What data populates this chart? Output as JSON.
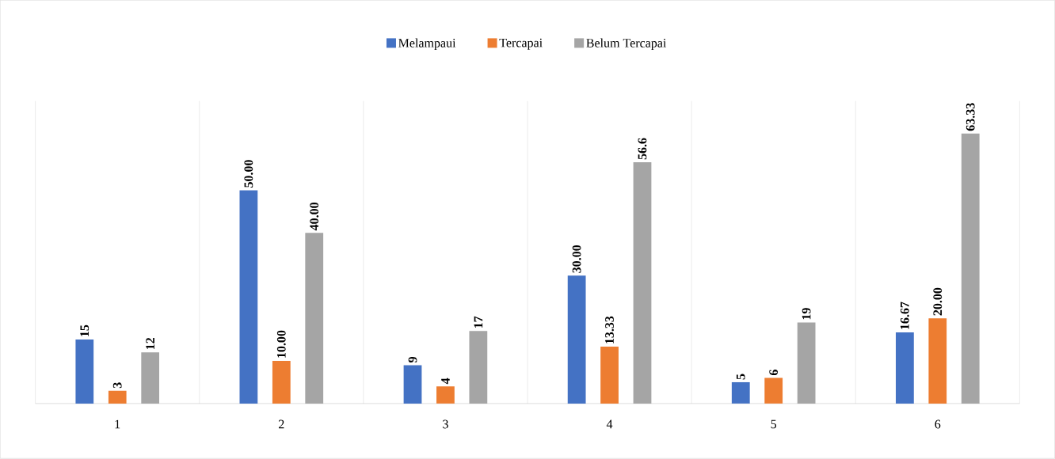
{
  "chart_data": {
    "type": "bar",
    "categories": [
      "1",
      "2",
      "3",
      "4",
      "5",
      "6"
    ],
    "series": [
      {
        "name": "Melampaui",
        "color": "#4472c4",
        "values": [
          15,
          50,
          9,
          30,
          5,
          16.67
        ],
        "value_labels": [
          "15",
          "50.00",
          "9",
          "30.00",
          "5",
          "16.67"
        ]
      },
      {
        "name": "Tercapai",
        "color": "#ed7d31",
        "values": [
          3,
          10,
          4,
          13.33,
          6,
          20
        ],
        "value_labels": [
          "3",
          "10.00",
          "4",
          "13.33",
          "6",
          "20.00"
        ]
      },
      {
        "name": "Belum Tercapai",
        "color": "#a5a5a5",
        "values": [
          12,
          40,
          17,
          56.6,
          19,
          63.33
        ],
        "value_labels": [
          "12",
          "40.00",
          "17",
          "56.6",
          "19",
          "63.33"
        ]
      }
    ],
    "grid": "x",
    "legend": "top"
  }
}
